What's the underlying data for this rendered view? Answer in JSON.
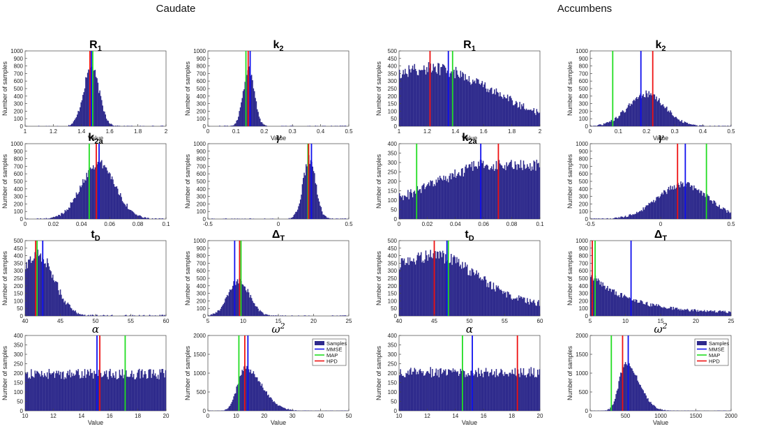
{
  "groups": [
    {
      "title": "Caudate"
    },
    {
      "title": "Accumbens"
    }
  ],
  "colors": {
    "bar": "#2e2a8c",
    "mmse": "#1010ee",
    "map": "#22dd22",
    "hpd": "#ee1111",
    "axis": "#444444"
  },
  "legend": {
    "samples": "Samples",
    "mmse": "MMSE",
    "map": "MAP",
    "hpd": "HPD"
  },
  "chart_data": [
    {
      "group": "Caudate",
      "type": "bar",
      "param": "R1",
      "title_main": "R",
      "title_sub": "1",
      "title_style": "bold",
      "xlabel": "Value",
      "ylabel": "Number of samples",
      "xlim": [
        1,
        2
      ],
      "ylim": [
        0,
        1000
      ],
      "xticks": [
        1,
        1.2,
        1.4,
        1.6,
        1.8,
        2
      ],
      "yticks": [
        0,
        100,
        200,
        300,
        400,
        500,
        600,
        700,
        800,
        900,
        1000
      ],
      "dist": {
        "kind": "normal",
        "mean": 1.47,
        "sd": 0.055,
        "peak": 780
      },
      "markers": {
        "mmse": 1.47,
        "map": 1.48,
        "hpd": 1.46
      }
    },
    {
      "group": "Caudate",
      "type": "bar",
      "param": "k2",
      "title_main": "k",
      "title_sub": "2",
      "title_style": "bold",
      "xlabel": "Value",
      "ylabel": "Number of samples",
      "xlim": [
        0,
        0.5
      ],
      "ylim": [
        0,
        1000
      ],
      "xticks": [
        0,
        0.1,
        0.2,
        0.3,
        0.4,
        0.5
      ],
      "yticks": [
        0,
        100,
        200,
        300,
        400,
        500,
        600,
        700,
        800,
        900,
        1000
      ],
      "dist": {
        "kind": "normal",
        "mean": 0.145,
        "sd": 0.02,
        "peak": 760
      },
      "markers": {
        "mmse": 0.15,
        "map": 0.135,
        "hpd": 0.143
      }
    },
    {
      "group": "Caudate",
      "type": "bar",
      "param": "k2a",
      "title_main": "k",
      "title_sub": "2a",
      "title_style": "bold",
      "xlabel": "",
      "ylabel": "Number of samples",
      "xlim": [
        0,
        0.1
      ],
      "ylim": [
        0,
        1000
      ],
      "xticks": [
        0,
        0.02,
        0.04,
        0.06,
        0.08,
        0.1
      ],
      "yticks": [
        0,
        100,
        200,
        300,
        400,
        500,
        600,
        700,
        800,
        900,
        1000
      ],
      "dist": {
        "kind": "normal",
        "mean": 0.052,
        "sd": 0.012,
        "peak": 740
      },
      "markers": {
        "mmse": 0.0525,
        "map": 0.0455,
        "hpd": 0.0505
      }
    },
    {
      "group": "Caudate",
      "type": "bar",
      "param": "gamma",
      "title_main": "γ",
      "title_sub": "",
      "title_style": "greek",
      "xlabel": "",
      "ylabel": "Number of samples",
      "xlim": [
        -0.5,
        0.5
      ],
      "ylim": [
        0,
        1000
      ],
      "xticks": [
        -0.5,
        0,
        0.5
      ],
      "yticks": [
        0,
        100,
        200,
        300,
        400,
        500,
        600,
        700,
        800,
        900,
        1000
      ],
      "dist": {
        "kind": "normal",
        "mean": 0.22,
        "sd": 0.045,
        "peak": 790
      },
      "markers": {
        "mmse": 0.235,
        "map": 0.21,
        "hpd": 0.215
      }
    },
    {
      "group": "Caudate",
      "type": "bar",
      "param": "tD",
      "title_main": "t",
      "title_sub": "D",
      "title_style": "bold",
      "xlabel": "",
      "ylabel": "Number of samples",
      "xlim": [
        40,
        60
      ],
      "ylim": [
        0,
        500
      ],
      "xticks": [
        40,
        45,
        50,
        55,
        60
      ],
      "yticks": [
        0,
        50,
        100,
        150,
        200,
        250,
        300,
        350,
        400,
        450,
        500
      ],
      "dist": {
        "kind": "truncnormal",
        "mean": 41.8,
        "sd": 2.3,
        "peak": 410
      },
      "markers": {
        "mmse": 42.5,
        "map": 41.7,
        "hpd": 41.5
      }
    },
    {
      "group": "Caudate",
      "type": "bar",
      "param": "DeltaT",
      "title_main": "Δ",
      "title_sub": "T",
      "title_style": "bold",
      "xlabel": "",
      "ylabel": "Number of samples",
      "xlim": [
        5,
        25
      ],
      "ylim": [
        0,
        1000
      ],
      "xticks": [
        5,
        10,
        15,
        20,
        25
      ],
      "yticks": [
        0,
        100,
        200,
        300,
        400,
        500,
        600,
        700,
        800,
        900,
        1000
      ],
      "dist": {
        "kind": "normal",
        "mean": 9.4,
        "sd": 1.5,
        "peak": 470
      },
      "markers": {
        "mmse": 8.8,
        "map": 9.7,
        "hpd": 9.5
      }
    },
    {
      "group": "Caudate",
      "type": "bar",
      "param": "alpha",
      "title_main": "α",
      "title_sub": "",
      "title_style": "greek",
      "xlabel": "Value",
      "ylabel": "Number of samples",
      "xlim": [
        10,
        20
      ],
      "ylim": [
        0,
        400
      ],
      "xticks": [
        10,
        12,
        14,
        16,
        18,
        20
      ],
      "yticks": [
        0,
        50,
        100,
        150,
        200,
        250,
        300,
        350,
        400
      ],
      "dist": {
        "kind": "uniform",
        "level": 195,
        "noise": 28
      },
      "markers": {
        "mmse": 15.1,
        "map": 17.1,
        "hpd": 15.3
      }
    },
    {
      "group": "Caudate",
      "type": "bar",
      "param": "omega2",
      "title_main": "ω",
      "title_sub": "2",
      "title_style": "greek",
      "xlabel": "Value",
      "ylabel": "Number of samples",
      "xlim": [
        0,
        50
      ],
      "ylim": [
        0,
        2000
      ],
      "xticks": [
        0,
        10,
        20,
        30,
        40,
        50
      ],
      "yticks": [
        0,
        500,
        1000,
        1500,
        2000
      ],
      "dist": {
        "kind": "skew",
        "mode": 13,
        "left": 2.5,
        "right": 6,
        "peak": 1130
      },
      "markers": {
        "mmse": 14.2,
        "map": 11,
        "hpd": 13.1
      },
      "show_legend": true
    },
    {
      "group": "Accumbens",
      "type": "bar",
      "param": "R1",
      "title_main": "R",
      "title_sub": "1",
      "title_style": "bold",
      "xlabel": "Value",
      "ylabel": "Number of samples",
      "xlim": [
        1,
        2
      ],
      "ylim": [
        0,
        500
      ],
      "xticks": [
        1,
        1.2,
        1.4,
        1.6,
        1.8,
        2
      ],
      "yticks": [
        0,
        50,
        100,
        150,
        200,
        250,
        300,
        350,
        400,
        450,
        500
      ],
      "dist": {
        "kind": "skew",
        "mode": 1.22,
        "left": 0.5,
        "right": 0.45,
        "peak": 385,
        "floor": 0
      },
      "markers": {
        "mmse": 1.35,
        "map": 1.38,
        "hpd": 1.22
      }
    },
    {
      "group": "Accumbens",
      "type": "bar",
      "param": "k2",
      "title_main": "k",
      "title_sub": "2",
      "title_style": "bold",
      "xlabel": "Value",
      "ylabel": "Number of samples",
      "xlim": [
        0,
        0.5
      ],
      "ylim": [
        0,
        1000
      ],
      "xticks": [
        0,
        0.1,
        0.2,
        0.3,
        0.4,
        0.5
      ],
      "yticks": [
        0,
        100,
        200,
        300,
        400,
        500,
        600,
        700,
        800,
        900,
        1000
      ],
      "dist": {
        "kind": "normal",
        "mean": 0.2,
        "sd": 0.065,
        "peak": 430
      },
      "markers": {
        "mmse": 0.18,
        "map": 0.08,
        "hpd": 0.222
      }
    },
    {
      "group": "Accumbens",
      "type": "bar",
      "param": "k2a",
      "title_main": "k",
      "title_sub": "2a",
      "title_style": "bold",
      "xlabel": "",
      "ylabel": "Number of samples",
      "xlim": [
        0,
        0.1
      ],
      "ylim": [
        0,
        400
      ],
      "xticks": [
        0,
        0.02,
        0.04,
        0.06,
        0.08,
        0.1
      ],
      "yticks": [
        0,
        50,
        100,
        150,
        200,
        250,
        300,
        350,
        400
      ],
      "dist": {
        "kind": "ramp",
        "start": 110,
        "end": 285,
        "plateau": 0.055,
        "noise": 30
      },
      "markers": {
        "mmse": 0.058,
        "map": 0.0125,
        "hpd": 0.0705
      }
    },
    {
      "group": "Accumbens",
      "type": "bar",
      "param": "gamma",
      "title_main": "γ",
      "title_sub": "",
      "title_style": "greek",
      "xlabel": "",
      "ylabel": "Number of samples",
      "xlim": [
        -0.5,
        0.5
      ],
      "ylim": [
        0,
        1000
      ],
      "xticks": [
        -0.5,
        0,
        0.5
      ],
      "yticks": [
        0,
        100,
        200,
        300,
        400,
        500,
        600,
        700,
        800,
        900,
        1000
      ],
      "dist": {
        "kind": "normal",
        "mean": 0.16,
        "sd": 0.18,
        "peak": 460
      },
      "markers": {
        "mmse": 0.175,
        "map": 0.325,
        "hpd": 0.12
      }
    },
    {
      "group": "Accumbens",
      "type": "bar",
      "param": "tD",
      "title_main": "t",
      "title_sub": "D",
      "title_style": "bold",
      "xlabel": "",
      "ylabel": "Number of samples",
      "xlim": [
        40,
        60
      ],
      "ylim": [
        0,
        500
      ],
      "xticks": [
        40,
        45,
        50,
        55,
        60
      ],
      "yticks": [
        0,
        50,
        100,
        150,
        200,
        250,
        300,
        350,
        400,
        450,
        500
      ],
      "dist": {
        "kind": "skew",
        "mode": 45,
        "left": 8,
        "right": 6,
        "peak": 400,
        "floor": 70
      },
      "markers": {
        "mmse": 46.8,
        "map": 47,
        "hpd": 45
      }
    },
    {
      "group": "Accumbens",
      "type": "bar",
      "param": "DeltaT",
      "title_main": "Δ",
      "title_sub": "T",
      "title_style": "bold",
      "xlabel": "",
      "ylabel": "Number of samples",
      "xlim": [
        5,
        25
      ],
      "ylim": [
        0,
        1000
      ],
      "xticks": [
        5,
        10,
        15,
        20,
        25
      ],
      "yticks": [
        0,
        100,
        200,
        300,
        400,
        500,
        600,
        700,
        800,
        900,
        1000
      ],
      "dist": {
        "kind": "decay",
        "start": 560,
        "scale": 5.5,
        "floor": 40
      },
      "markers": {
        "mmse": 10.8,
        "map": 5.7,
        "hpd": 5.3
      }
    },
    {
      "group": "Accumbens",
      "type": "bar",
      "param": "alpha",
      "title_main": "α",
      "title_sub": "",
      "title_style": "greek",
      "xlabel": "Value",
      "ylabel": "Number of samples",
      "xlim": [
        10,
        20
      ],
      "ylim": [
        0,
        400
      ],
      "xticks": [
        10,
        12,
        14,
        16,
        18,
        20
      ],
      "yticks": [
        0,
        50,
        100,
        150,
        200,
        250,
        300,
        350,
        400
      ],
      "dist": {
        "kind": "uniform",
        "level": 205,
        "noise": 28
      },
      "markers": {
        "mmse": 15.2,
        "map": 14.5,
        "hpd": 18.4
      }
    },
    {
      "group": "Accumbens",
      "type": "bar",
      "param": "omega2",
      "title_main": "ω",
      "title_sub": "2",
      "title_style": "greek",
      "xlabel": "Value",
      "ylabel": "Number of samples",
      "xlim": [
        0,
        2000
      ],
      "ylim": [
        0,
        2000
      ],
      "xticks": [
        0,
        500,
        1000,
        1500,
        2000
      ],
      "yticks": [
        0,
        500,
        1000,
        1500,
        2000
      ],
      "dist": {
        "kind": "skew",
        "mode": 500,
        "left": 90,
        "right": 190,
        "peak": 1280
      },
      "markers": {
        "mmse": 540,
        "map": 300,
        "hpd": 460
      },
      "show_legend": true
    }
  ]
}
